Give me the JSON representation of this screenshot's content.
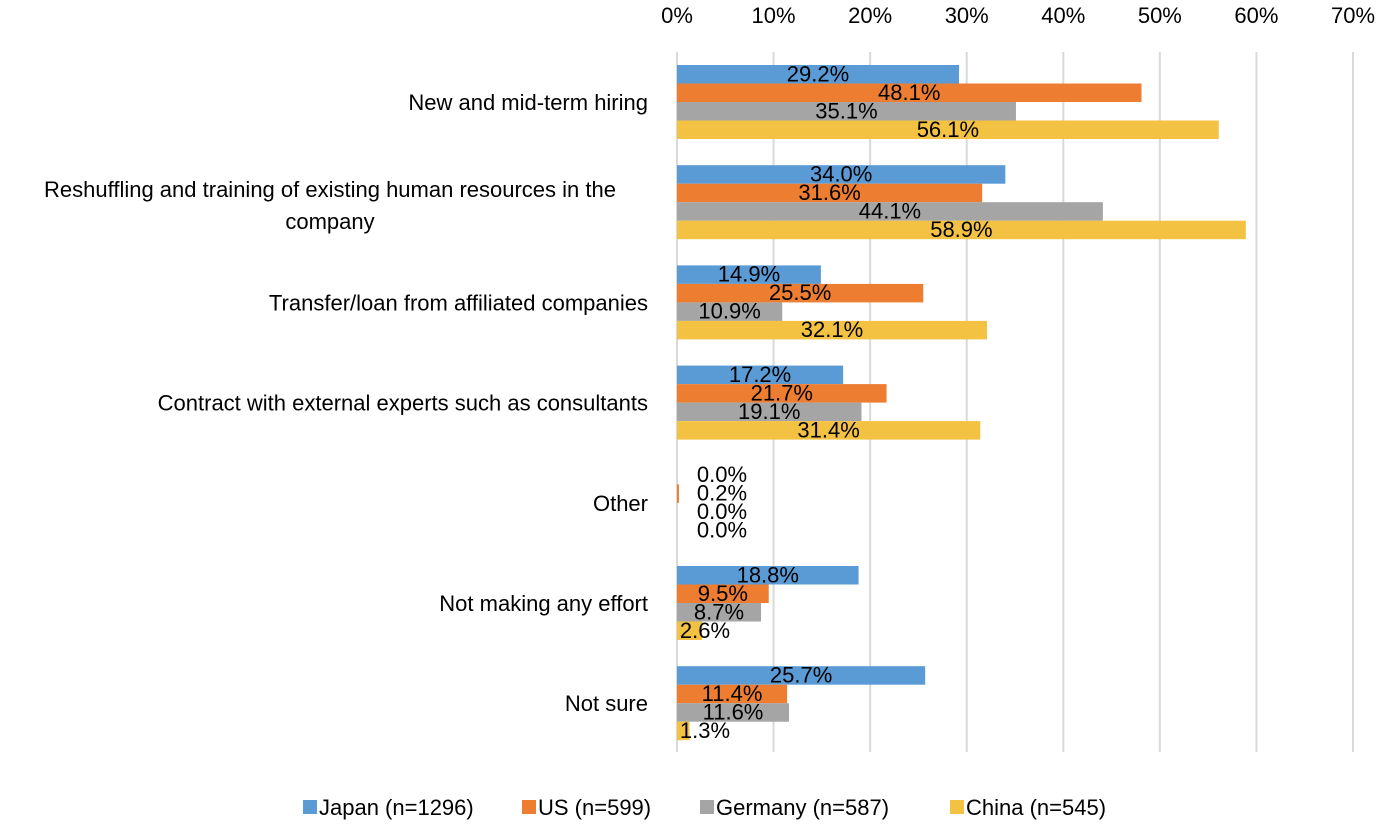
{
  "chart_data": {
    "type": "bar",
    "orientation": "horizontal",
    "title": "",
    "xlabel": "",
    "ylabel": "",
    "xlim": [
      0,
      70
    ],
    "x_ticks": [
      0,
      10,
      20,
      30,
      40,
      50,
      60,
      70
    ],
    "x_tick_labels": [
      "0%",
      "10%",
      "20%",
      "30%",
      "40%",
      "50%",
      "60%",
      "70%"
    ],
    "x_axis_position": "top",
    "grid": true,
    "legend_position": "bottom",
    "categories": [
      "New and mid-term hiring",
      "Reshuffling and training of existing human resources in the company",
      "Transfer/loan from affiliated companies",
      "Contract with external experts such as consultants",
      "Other",
      "Not making any effort",
      "Not sure"
    ],
    "series": [
      {
        "name": "Japan (n=1296)",
        "color": "#5B9BD5",
        "values": [
          29.2,
          34.0,
          14.9,
          17.2,
          0.0,
          18.8,
          25.7
        ],
        "labels": [
          "29.2%",
          "34.0%",
          "14.9%",
          "17.2%",
          "0.0%",
          "18.8%",
          "25.7%"
        ]
      },
      {
        "name": "US (n=599)",
        "color": "#ED7D31",
        "values": [
          48.1,
          31.6,
          25.5,
          21.7,
          0.2,
          9.5,
          11.4
        ],
        "labels": [
          "48.1%",
          "31.6%",
          "25.5%",
          "21.7%",
          "0.2%",
          "9.5%",
          "11.4%"
        ]
      },
      {
        "name": "Germany (n=587)",
        "color": "#A5A5A5",
        "values": [
          35.1,
          44.1,
          10.9,
          19.1,
          0.0,
          8.7,
          11.6
        ],
        "labels": [
          "35.1%",
          "44.1%",
          "10.9%",
          "19.1%",
          "0.0%",
          "8.7%",
          "11.6%"
        ]
      },
      {
        "name": "China (n=545)",
        "color": "#F4C242",
        "values": [
          56.1,
          58.9,
          32.1,
          31.4,
          0.0,
          2.6,
          1.3
        ],
        "labels": [
          "56.1%",
          "58.9%",
          "32.1%",
          "31.4%",
          "0.0%",
          "2.6%",
          "1.3%"
        ]
      }
    ]
  }
}
